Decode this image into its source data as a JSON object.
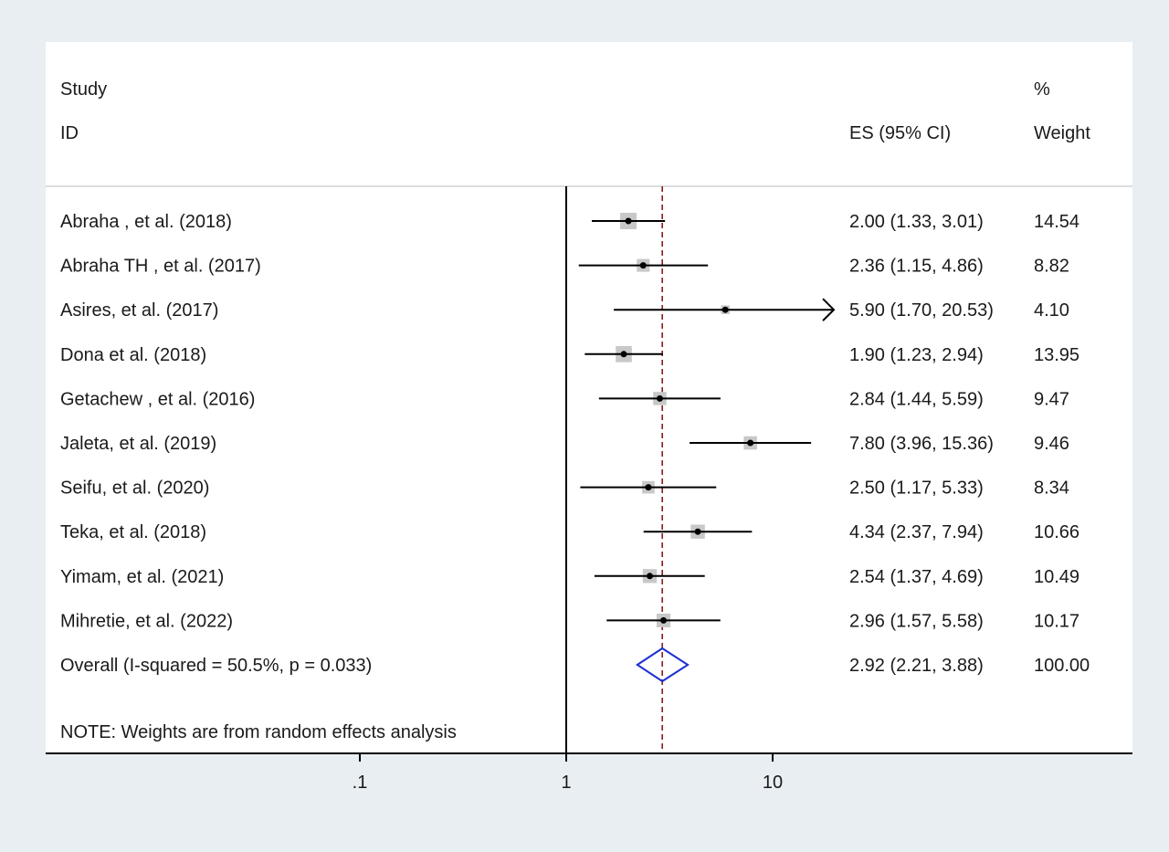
{
  "chart_data": {
    "type": "forest",
    "header": {
      "col1_line1": "Study",
      "col1_line2": "ID",
      "col2": "ES (95% CI)",
      "col3_line1": "%",
      "col3_line2": "Weight"
    },
    "x_scale": "log",
    "x_ticks": [
      {
        "value": 0.1,
        "label": ".1"
      },
      {
        "value": 1,
        "label": "1"
      },
      {
        "value": 10,
        "label": "10"
      }
    ],
    "xlim": [
      0.01,
      100
    ],
    "null_line": 1,
    "studies": [
      {
        "name": "Abraha , et al. (2018)",
        "es": 2.0,
        "lo": 1.33,
        "hi": 3.01,
        "es_text": "2.00 (1.33, 3.01)",
        "weight": "14.54",
        "weight_value": 14.54
      },
      {
        "name": "Abraha TH , et al. (2017)",
        "es": 2.36,
        "lo": 1.15,
        "hi": 4.86,
        "es_text": "2.36 (1.15, 4.86)",
        "weight": "8.82",
        "weight_value": 8.82
      },
      {
        "name": "Asires, et al. (2017)",
        "es": 5.9,
        "lo": 1.7,
        "hi": 20.53,
        "es_text": "5.90 (1.70, 20.53)",
        "weight": "4.10",
        "weight_value": 4.1,
        "arrow_right": true
      },
      {
        "name": "Dona et al. (2018)",
        "es": 1.9,
        "lo": 1.23,
        "hi": 2.94,
        "es_text": "1.90 (1.23, 2.94)",
        "weight": "13.95",
        "weight_value": 13.95
      },
      {
        "name": "Getachew , et al. (2016)",
        "es": 2.84,
        "lo": 1.44,
        "hi": 5.59,
        "es_text": "2.84 (1.44, 5.59)",
        "weight": "9.47",
        "weight_value": 9.47
      },
      {
        "name": "Jaleta, et al. (2019)",
        "es": 7.8,
        "lo": 3.96,
        "hi": 15.36,
        "es_text": "7.80 (3.96, 15.36)",
        "weight": "9.46",
        "weight_value": 9.46
      },
      {
        "name": "Seifu, et al. (2020)",
        "es": 2.5,
        "lo": 1.17,
        "hi": 5.33,
        "es_text": "2.50 (1.17, 5.33)",
        "weight": "8.34",
        "weight_value": 8.34
      },
      {
        "name": "Teka, et al.  (2018)",
        "es": 4.34,
        "lo": 2.37,
        "hi": 7.94,
        "es_text": "4.34 (2.37, 7.94)",
        "weight": "10.66",
        "weight_value": 10.66
      },
      {
        "name": "Yimam, et al. (2021)",
        "es": 2.54,
        "lo": 1.37,
        "hi": 4.69,
        "es_text": "2.54 (1.37, 4.69)",
        "weight": "10.49",
        "weight_value": 10.49
      },
      {
        "name": "Mihretie, et al. (2022)",
        "es": 2.96,
        "lo": 1.57,
        "hi": 5.58,
        "es_text": "2.96 (1.57, 5.58)",
        "weight": "10.17",
        "weight_value": 10.17
      }
    ],
    "overall": {
      "name": "Overall  (I-squared = 50.5%, p = 0.033)",
      "es": 2.92,
      "lo": 2.21,
      "hi": 3.88,
      "es_text": "2.92 (2.21, 3.88)",
      "weight": "100.00"
    },
    "note": "NOTE: Weights are from random effects analysis",
    "colors": {
      "ci_line": "#000000",
      "weight_box": "#c8c8c8",
      "point": "#000000",
      "overall_diamond": "#1f2fd1",
      "pooled_line": "#8b1a1a",
      "axis": "#000000",
      "header_rule": "#dcdcdc"
    }
  }
}
